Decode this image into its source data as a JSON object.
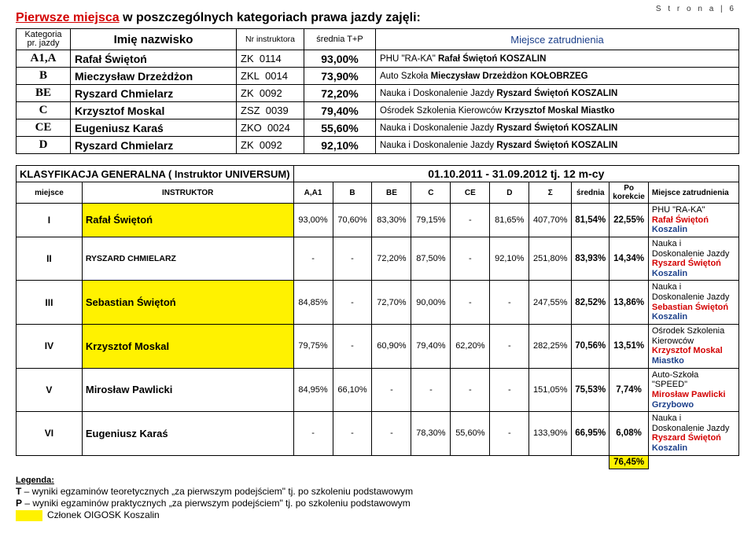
{
  "page_label": "S t r o n a  | 6",
  "title_red": "Pierwsze miejsca",
  "title_rest": " w poszczególnych kategoriach prawa jazdy zajęli:",
  "table1": {
    "headers": {
      "kat_l1": "Kategoria",
      "kat_l2": "pr. jazdy",
      "imie": "Imię nazwisko",
      "nr": "Nr instruktora",
      "sr": "średnia T+P",
      "miejsce": "Miejsce zatrudnienia"
    },
    "rows": [
      {
        "cat": "A1,A",
        "name": "Rafał Świętoń",
        "code_pref": "ZK",
        "code_num": "0114",
        "pct": "93,00%",
        "place_pre": "PHU \"RA-KA\" ",
        "place_bold": "Rafał Świętoń",
        "place_suf": "",
        "place_end": "KOSZALIN"
      },
      {
        "cat": "B",
        "name": "Mieczysław Drzeżdżon",
        "code_pref": "ZKL",
        "code_num": "0014",
        "pct": "73,90%",
        "place_pre": "Auto Szkoła ",
        "place_bold": "Mieczysław Drzeżdżon",
        "place_suf": " ",
        "place_end": "KOŁOBRZEG"
      },
      {
        "cat": "BE",
        "name": "Ryszard Chmielarz",
        "code_pref": "ZK",
        "code_num": "0092",
        "pct": "72,20%",
        "place_pre": "Nauka i Doskonalenie Jazdy ",
        "place_bold": "Ryszard Świętoń",
        "place_suf": " ",
        "place_end": "KOSZALIN"
      },
      {
        "cat": "C",
        "name": "Krzysztof Moskal",
        "code_pref": "ZSZ",
        "code_num": "0039",
        "pct": "79,40%",
        "place_pre": "Ośrodek Szkolenia Kierowców ",
        "place_bold": "Krzysztof Moskal",
        "place_suf": " ",
        "place_end": "Miastko"
      },
      {
        "cat": "CE",
        "name": "Eugeniusz Karaś",
        "code_pref": "ZKO",
        "code_num": "0024",
        "pct": "55,60%",
        "place_pre": "Nauka i Doskonalenie Jazdy ",
        "place_bold": "Ryszard Świętoń",
        "place_suf": " ",
        "place_end": "KOSZALIN"
      },
      {
        "cat": "D",
        "name": "Ryszard Chmielarz",
        "code_pref": "ZK",
        "code_num": "0092",
        "pct": "92,10%",
        "place_pre": "Nauka i Doskonalenie Jazdy ",
        "place_bold": "Ryszard Świętoń",
        "place_suf": " ",
        "place_end": "KOSZALIN"
      }
    ]
  },
  "table2": {
    "title_left": "KLASYFIKACJA GENERALNA ( Instruktor UNIVERSUM)",
    "title_right": "01.10.2011 - 31.09.2012 tj. 12 m-cy",
    "headers": {
      "miejsce": "miejsce",
      "instruktor": "INSTRUKTOR",
      "a": "A,A1",
      "b": "B",
      "be": "BE",
      "c": "C",
      "ce": "CE",
      "d": "D",
      "sigma": "Σ",
      "srednia": "średnia",
      "korekta": "Po korekcie",
      "mz": "Miejsce zatrudnienia"
    },
    "rows": [
      {
        "m": "I",
        "instr": "Rafał Świętoń",
        "hl": true,
        "a": "93,00%",
        "b": "70,60%",
        "be": "83,30%",
        "c": "79,15%",
        "ce": "-",
        "d": "81,65%",
        "sigma": "407,70%",
        "sr": "81,54%",
        "kor": "22,55%",
        "pl1": "PHU \"RA-KA\" ",
        "pl2": "Rafał Świętoń",
        "pl3": " Koszalin"
      },
      {
        "m": "II",
        "instr": "RYSZARD CHMIELARZ",
        "hl": false,
        "a": "-",
        "b": "-",
        "be": "72,20%",
        "c": "87,50%",
        "ce": "-",
        "d": "92,10%",
        "sigma": "251,80%",
        "sr": "83,93%",
        "kor": "14,34%",
        "pl1": "Nauka i Doskonalenie Jazdy ",
        "pl2": "Ryszard Świętoń",
        "pl3": " Koszalin"
      },
      {
        "m": "III",
        "instr": "Sebastian Świętoń",
        "hl": true,
        "a": "84,85%",
        "b": "-",
        "be": "72,70%",
        "c": "90,00%",
        "ce": "-",
        "d": "-",
        "sigma": "247,55%",
        "sr": "82,52%",
        "kor": "13,86%",
        "pl1": "Nauka i Doskonalenie Jazdy ",
        "pl2": "Sebastian Świętoń",
        "pl3": " Koszalin"
      },
      {
        "m": "IV",
        "instr": "Krzysztof Moskal",
        "hl": true,
        "a": "79,75%",
        "b": "-",
        "be": "60,90%",
        "c": "79,40%",
        "ce": "62,20%",
        "d": "-",
        "sigma": "282,25%",
        "sr": "70,56%",
        "kor": "13,51%",
        "pl1": "Ośrodek Szkolenia Kierowców ",
        "pl2": "Krzysztof Moskal",
        "pl3": " Miastko"
      },
      {
        "m": "V",
        "instr": "Mirosław Pawlicki",
        "hl": false,
        "a": "84,95%",
        "b": "66,10%",
        "be": "-",
        "c": "-",
        "ce": "-",
        "d": "-",
        "sigma": "151,05%",
        "sr": "75,53%",
        "kor": "7,74%",
        "pl1": "Auto-Szkoła \"SPEED\" ",
        "pl2": "Mirosław Pawlicki",
        "pl3": " Grzybowo"
      },
      {
        "m": "VI",
        "instr": "Eugeniusz Karaś",
        "hl": false,
        "a": "-",
        "b": "-",
        "be": "-",
        "c": "78,30%",
        "ce": "55,60%",
        "d": "-",
        "sigma": "133,90%",
        "sr": "66,95%",
        "kor": "6,08%",
        "pl1": "Nauka i Doskonalenie Jazdy ",
        "pl2": "Ryszard Świętoń",
        "pl3": " Koszalin"
      }
    ],
    "footer_val": "76,45%"
  },
  "legend": {
    "title": "Legenda:",
    "t": "T – wyniki egzaminów teoretycznych „za pierwszym podejściem\" tj. po szkoleniu podstawowym",
    "p": "P – wyniki egzaminów praktycznych „za pierwszym podejściem\" tj. po szkoleniu podstawowym",
    "sw": "Członek OIGOSK Koszalin"
  }
}
